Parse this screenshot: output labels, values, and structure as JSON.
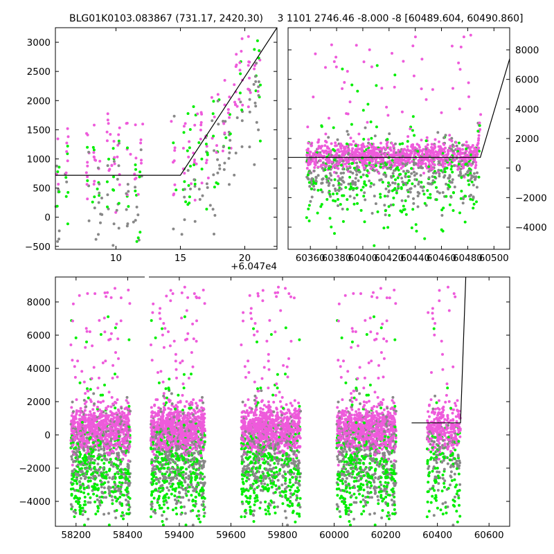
{
  "chart_data": [
    {
      "type": "scatter",
      "title": "BLG01K0103.083867 (731.17, 2420.30)",
      "xlim": [
        5.3,
        22.5
      ],
      "ylim": [
        -550,
        3250
      ],
      "x_offset_label": "+6.047e4",
      "xticks": [
        10,
        15,
        20
      ],
      "yticks": [
        -500,
        0,
        500,
        1000,
        1500,
        2000,
        2500,
        3000
      ],
      "yaxis_side": "left",
      "series": [
        {
          "color": "#ee5bdb",
          "band": "I"
        },
        {
          "color": "#00ee00",
          "band": "V"
        },
        {
          "color": "#888888",
          "band": "other"
        }
      ],
      "model": {
        "x": [
          5.3,
          15.0,
          22.5
        ],
        "y": [
          720,
          720,
          3250
        ]
      },
      "groups": [
        {
          "x": [
            7.8,
            8.4
          ],
          "y": [
            800,
            1350
          ]
        },
        {
          "x": [
            9.3,
            10.1
          ],
          "y": [
            900,
            1150
          ]
        },
        {
          "x": [
            11.0,
            12.2
          ],
          "y": [
            200,
            1200
          ]
        },
        {
          "x": [
            15.2,
            17.8
          ],
          "y": [
            400,
            1500
          ]
        },
        {
          "x": [
            17.8,
            21.0
          ],
          "y": [
            900,
            2500
          ]
        }
      ]
    },
    {
      "type": "scatter",
      "title": "3 1101 2746.46 -8.000 -8 [60489.604, 60490.860]",
      "xlim": [
        60343,
        60512
      ],
      "ylim": [
        -5500,
        9500
      ],
      "xticks": [
        60360,
        60380,
        60400,
        60420,
        60440,
        60460,
        60480,
        60500
      ],
      "yticks": [
        -4000,
        -2000,
        0,
        2000,
        4000,
        6000,
        8000
      ],
      "yaxis_side": "right",
      "series": [
        {
          "color": "#ee5bdb",
          "band": "I"
        },
        {
          "color": "#00ee00",
          "band": "V"
        },
        {
          "color": "#888888",
          "band": "other"
        }
      ],
      "model": {
        "x": [
          60343,
          60489.6,
          60512
        ],
        "y": [
          720,
          720,
          7400
        ]
      },
      "seasons": [
        [
          60357,
          60490
        ]
      ]
    },
    {
      "type": "scatter",
      "title": "",
      "xlim": [
        58120,
        60680
      ],
      "ylim": [
        -5500,
        9500
      ],
      "xticks": [
        58200,
        58400,
        59400,
        59600,
        59800,
        60000,
        60200,
        60400,
        60600
      ],
      "yticks": [
        -4000,
        -2000,
        0,
        2000,
        4000,
        6000,
        8000
      ],
      "yaxis_side": "left",
      "break": {
        "at_x": 58500,
        "resume_x": 59300
      },
      "series": [
        {
          "color": "#ee5bdb",
          "band": "I"
        },
        {
          "color": "#00ee00",
          "band": "V"
        },
        {
          "color": "#888888",
          "band": "other"
        }
      ],
      "model": {
        "x": [
          60300,
          60489.6,
          60510
        ],
        "y": [
          720,
          720,
          9500
        ]
      },
      "seasons": [
        [
          58180,
          58410
        ],
        [
          59290,
          59500
        ],
        [
          59640,
          59870
        ],
        [
          60010,
          60240
        ],
        [
          60360,
          60490
        ]
      ]
    }
  ]
}
